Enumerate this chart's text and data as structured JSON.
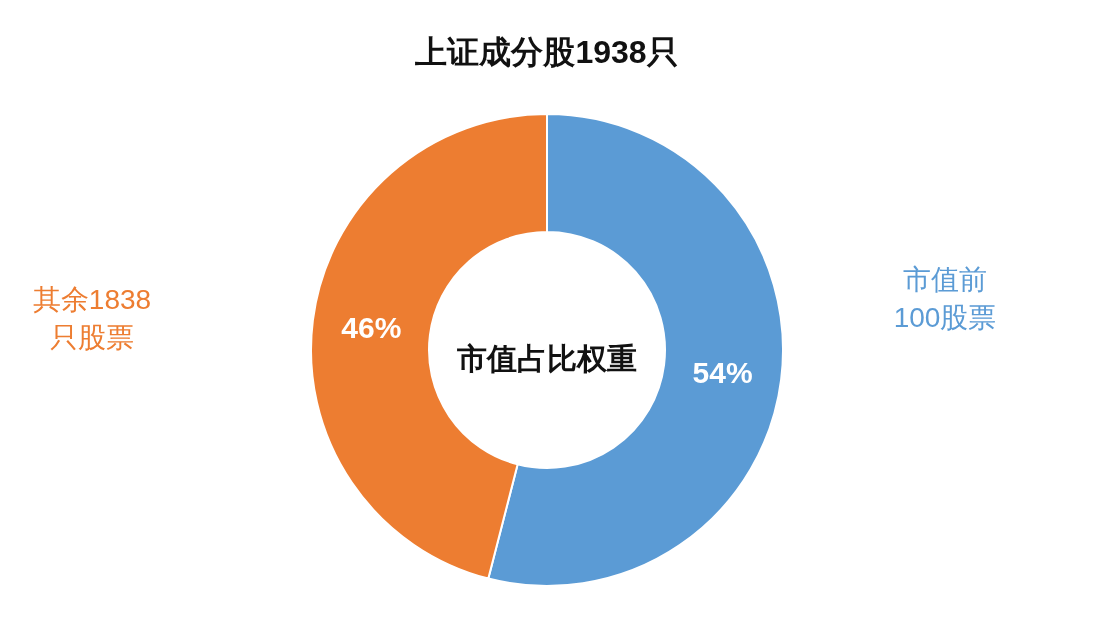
{
  "chart_data": {
    "type": "donut",
    "title": "上证成分股1938只",
    "categories": [
      "市值前\n100股票",
      "其余1838\n只股票"
    ],
    "values": [
      54,
      46
    ],
    "colors": [
      "#5b9bd5",
      "#ed7d31"
    ],
    "value_labels": [
      "54%",
      "46%"
    ],
    "annotations": [
      "市值占比权重"
    ]
  }
}
